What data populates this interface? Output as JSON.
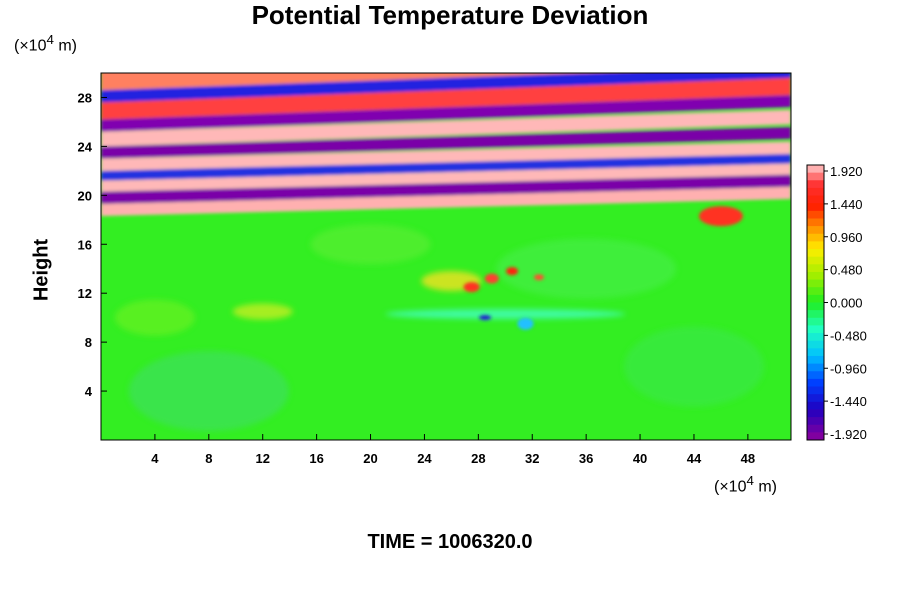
{
  "chart_data": {
    "type": "heatmap",
    "title": "Potential Temperature Deviation",
    "ylabel": "Height",
    "y_unit_prefix": "(×10",
    "y_unit_exp": "4",
    "y_unit_suffix": " m)",
    "x_unit_prefix": "(×10",
    "x_unit_exp": "4",
    "x_unit_suffix": " m)",
    "xlim": [
      0,
      51.2
    ],
    "ylim": [
      0,
      30
    ],
    "x_ticks": [
      "4",
      "8",
      "12",
      "16",
      "20",
      "24",
      "28",
      "32",
      "36",
      "40",
      "44",
      "48"
    ],
    "y_ticks": [
      "4",
      "8",
      "12",
      "16",
      "20",
      "24",
      "28"
    ],
    "colorbar": {
      "min": -1.92,
      "max": 1.92,
      "labels": [
        "1.920",
        "1.440",
        "0.960",
        "0.480",
        "0.000",
        "-0.480",
        "-0.960",
        "-1.440",
        "-1.920"
      ]
    },
    "footer": "TIME = 1006320.0"
  },
  "colors": {
    "background": "#ffffff",
    "field_base": "#33ee22"
  }
}
